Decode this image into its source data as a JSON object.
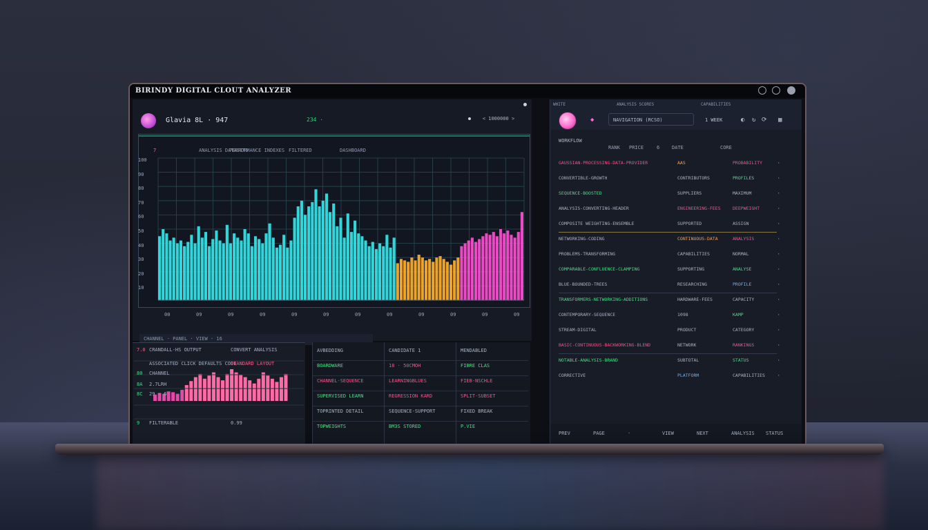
{
  "window": {
    "title": "BIRINDY DIGITAL CLOUT ANALYZER"
  },
  "left_panel": {
    "app_name": "Glavia 8L  ·  947",
    "status_text": "234  ·",
    "search_placeholder": "< 1000000 >",
    "header_labels": [
      "7",
      "ANALYSIS DATASETS",
      "PERFORMANCE INDEXES",
      "FILTERED",
      "DASHBOARD"
    ],
    "y_ticks": [
      "100",
      "90",
      "80",
      "70",
      "60",
      "50",
      "40",
      "30",
      "20",
      "10"
    ],
    "x_ticks": [
      "00",
      "09",
      "09",
      "09",
      "09",
      "09",
      "09",
      "09",
      "09",
      "09",
      "09",
      "09"
    ],
    "scroll_text": "CHANNEL  ·  PANEL    ·    VIEW   ·  16"
  },
  "chart_data": {
    "type": "bar",
    "title": "",
    "xlabel": "",
    "ylabel": "",
    "ylim": [
      0,
      100
    ],
    "series": [
      {
        "color": "#35e6e9",
        "values": [
          45,
          50,
          47,
          42,
          44,
          40,
          42,
          38,
          41,
          46,
          40,
          52,
          44,
          48,
          38,
          43,
          49,
          42,
          40,
          53,
          40,
          47,
          44,
          42,
          50,
          47,
          38,
          45,
          43,
          40,
          47,
          54,
          44,
          37,
          39,
          46,
          37,
          42,
          58,
          66,
          70,
          60,
          66,
          69,
          78,
          66,
          70,
          75,
          62,
          68,
          52,
          58,
          44,
          61,
          48,
          56,
          47,
          45,
          42,
          38,
          41,
          36,
          40,
          38,
          46,
          37,
          44
        ]
      },
      {
        "color": "#ffb02e",
        "values": [
          26,
          29,
          28,
          27,
          30,
          28,
          32,
          30,
          28,
          29,
          27,
          30,
          31,
          29,
          27,
          25,
          28,
          30
        ]
      },
      {
        "color": "#ff4fd2",
        "values": [
          38,
          40,
          42,
          44,
          41,
          43,
          45,
          47,
          46,
          48,
          45,
          50,
          47,
          49,
          46,
          44,
          48,
          62
        ]
      }
    ]
  },
  "mini_panel": {
    "rows": [
      {
        "tag": "7.0",
        "label": "CRANDALL-HS OUTPUT",
        "right": "CONVERT ANALYSIS"
      },
      {
        "tag": "",
        "label": "ASSOCIATED CLICK DEFAULTS CODE",
        "right": "STANDARD LAYOUT"
      },
      {
        "tag": "80",
        "label": "CHANNEL",
        "right": ""
      },
      {
        "tag": "8A",
        "label": "2.7LRH",
        "right": ""
      },
      {
        "tag": "8C",
        "label": "29  ·  6",
        "right": ""
      },
      {
        "tag": "9",
        "label": "FILTERABLE",
        "right": "0.99"
      }
    ],
    "bars": [
      8,
      10,
      9,
      12,
      11,
      9,
      14,
      20,
      25,
      30,
      34,
      28,
      32,
      36,
      30,
      26,
      34,
      40,
      36,
      33,
      30,
      26,
      22,
      28,
      36,
      32,
      28,
      24,
      30,
      34
    ]
  },
  "mid_table": {
    "columns": [
      [
        {
          "text": "AVBEDDING",
          "color": "grey"
        },
        {
          "text": "BOARDWARE",
          "color": "green"
        },
        {
          "text": "CHANNEL-SEQUENCE",
          "color": "pink"
        },
        {
          "text": "SUPERVISED LEARN",
          "color": "green"
        },
        {
          "text": "TOPRINTED DETAIL",
          "color": "grey"
        },
        {
          "text": "TOPWEIGHTS",
          "color": "green"
        }
      ],
      [
        {
          "text": "CANDIDATE 1",
          "color": "grey"
        },
        {
          "text": "18  ·  50CMOH",
          "color": "pink"
        },
        {
          "text": "LEARNINGBLUES",
          "color": "pink"
        },
        {
          "text": "REGRESSION KARD",
          "color": "pink"
        },
        {
          "text": "SEQUENCE-SUPPORT",
          "color": "grey"
        },
        {
          "text": "BM3S STORED",
          "color": "green"
        }
      ],
      [
        {
          "text": "MENDABLED",
          "color": "grey"
        },
        {
          "text": "FIBRE CLAS",
          "color": "green"
        },
        {
          "text": "FIEB-NSCHLE",
          "color": "pink"
        },
        {
          "text": "SPLIT-SUBSET",
          "color": "pink"
        },
        {
          "text": "FIXED BREAK",
          "color": "grey"
        },
        {
          "text": "P.VIE",
          "color": "green"
        }
      ]
    ]
  },
  "right_panel": {
    "tabs": [
      "WHITE",
      "ANALYSIS SCORES",
      "CAPABILITIES"
    ],
    "search_text": "NAVIGATION (RCSO)",
    "search_button": "1 WEEK",
    "list_head": "WORKFLOW",
    "col_heads": [
      "RANK",
      "PRICE",
      "6",
      "DATE",
      "CORE"
    ],
    "rows": [
      {
        "name": "GAUSSIAN-PROCESSING-DATA-PROVIDER",
        "mid": "AAS",
        "val": "PROBABILITY",
        "name_color": "pink",
        "mid_color": "amber",
        "val_color": "pink"
      },
      {
        "name": "CONVERTIBLE-GROWTH",
        "mid": "CONTRIBUTORS",
        "val": "PROFILES",
        "name_color": "grey",
        "mid_color": "grey",
        "val_color": "green"
      },
      {
        "name": "SEQUENCE-BOOSTED",
        "mid": "SUPPLIERS",
        "val": "MAXIMUM",
        "name_color": "green",
        "mid_color": "grey",
        "val_color": "grey"
      },
      {
        "name": "ANALYSIS-CONVERTING-HEADER",
        "mid": "ENGINEERING-FEES",
        "val": "DEEPWEIGHT",
        "name_color": "grey",
        "mid_color": "pink",
        "val_color": "pink"
      },
      {
        "name": "COMPOSITE WEIGHTING-ENSEMBLE",
        "mid": "SUPPORTED",
        "val": "ASSIGN",
        "name_color": "grey",
        "mid_color": "grey",
        "val_color": "grey"
      },
      {
        "name": "NETWORKING-CODING",
        "mid": "CONTINUOUS-DATA",
        "val": "ANALYSIS",
        "name_color": "grey",
        "mid_color": "amber",
        "val_color": "pink"
      },
      {
        "name": "PROBLEMS-TRANSFORMING",
        "mid": "CAPABILITIES",
        "val": "NORMAL",
        "name_color": "grey",
        "mid_color": "grey",
        "val_color": "grey"
      },
      {
        "name": "COMPARABLE-CONFLUENCE-CLAMPING",
        "mid": "SUPPORTING",
        "val": "ANALYSE",
        "name_color": "green",
        "mid_color": "grey",
        "val_color": "green"
      },
      {
        "name": "BLUE-BOUNDED-TREES",
        "mid": "RESEARCHING",
        "val": "PROFILE",
        "name_color": "grey",
        "mid_color": "grey",
        "val_color": "blue"
      },
      {
        "name": "TRANSFORMERS-NETWORKING-ADDITIONS",
        "mid": "HARDWARE-FEES",
        "val": "CAPACITY",
        "name_color": "green",
        "mid_color": "grey",
        "val_color": "grey"
      },
      {
        "name": "CONTEMPORARY-SEQUENCE",
        "mid": "1098",
        "val": "KAMP",
        "name_color": "grey",
        "mid_color": "grey",
        "val_color": "green"
      },
      {
        "name": "STREAM-DIGITAL",
        "mid": "PRODUCT",
        "val": "CATEGORY",
        "name_color": "grey",
        "mid_color": "grey",
        "val_color": "grey"
      },
      {
        "name": "BASIC-CONTINUOUS-BACKWORKING-BLEND",
        "mid": "NETWORK",
        "val": "RANKINGS",
        "name_color": "pink",
        "mid_color": "grey",
        "val_color": "pink"
      },
      {
        "name": "NOTABLE-ANALYSIS-BRAND",
        "mid": "SUBTOTAL",
        "val": "STATUS",
        "name_color": "green",
        "mid_color": "grey",
        "val_color": "green"
      },
      {
        "name": "CORRECTIVE",
        "mid": "PLATFORM",
        "val": "CAPABILITIES",
        "name_color": "grey",
        "mid_color": "blue",
        "val_color": "grey"
      }
    ],
    "footer": [
      "PREV",
      "PAGE",
      "·",
      "VIEW",
      "NEXT",
      "ANALYSIS",
      "STATUS"
    ]
  },
  "colors": {
    "accent_cyan": "#35e6e9",
    "accent_amber": "#ffb02e",
    "accent_magenta": "#ff4fd2",
    "positive": "#3ae67d",
    "negative": "#ff4d8b"
  }
}
